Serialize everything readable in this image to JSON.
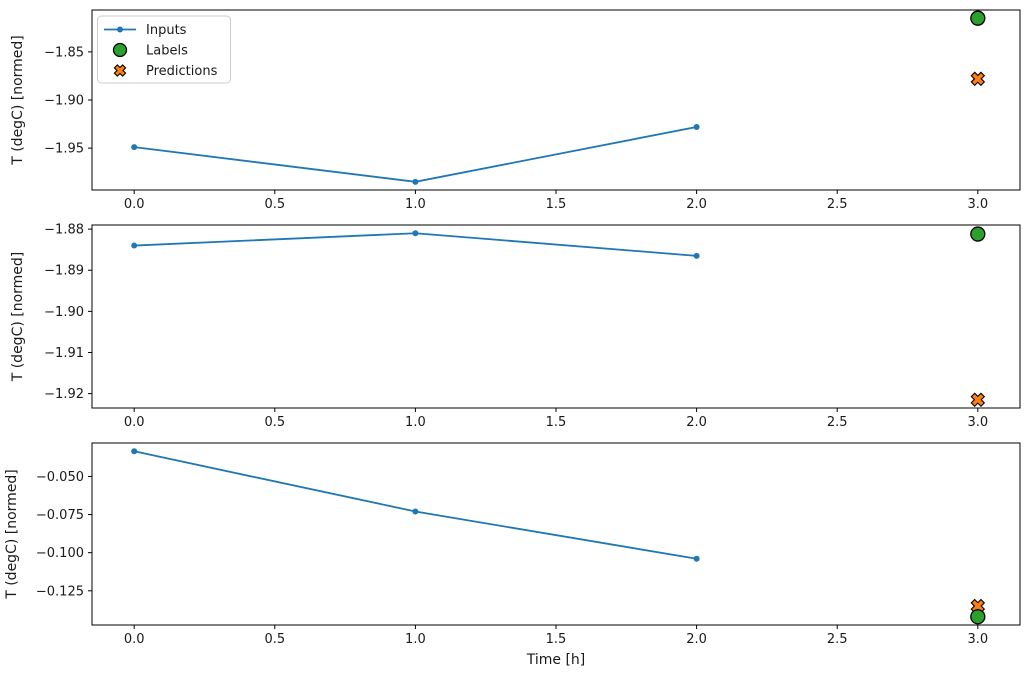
{
  "chart_data": {
    "type": "line",
    "title": "",
    "xlabel": "Time [h]",
    "ylabel": "T (degC) [normed]",
    "grid": false,
    "legend": {
      "position": "upper left",
      "items": [
        {
          "label": "Inputs",
          "marker": "line-dot",
          "color": "#1f77b4",
          "edge": "#1f77b4"
        },
        {
          "label": "Labels",
          "marker": "circle",
          "color": "#2ca02c",
          "edge": "#000000"
        },
        {
          "label": "Predictions",
          "marker": "x",
          "color": "#ff7f0e",
          "edge": "#000000"
        }
      ]
    },
    "colors": {
      "inputs": "#1f77b4",
      "labels": "#2ca02c",
      "predictions": "#ff7f0e"
    },
    "xlim": [
      -0.15,
      3.15
    ],
    "xticks": [
      0.0,
      0.5,
      1.0,
      1.5,
      2.0,
      2.5,
      3.0
    ],
    "xtick_decimals": 1,
    "subplots": [
      {
        "name": "example-1",
        "series": [
          {
            "name": "Inputs",
            "x": [
              0,
              1,
              2
            ],
            "y": [
              -1.949,
              -1.985,
              -1.928
            ]
          },
          {
            "name": "Labels",
            "x": [
              3
            ],
            "y": [
              -1.815
            ]
          },
          {
            "name": "Predictions",
            "x": [
              3
            ],
            "y": [
              -1.878
            ]
          }
        ],
        "yticks": [
          -1.85,
          -1.9,
          -1.95
        ],
        "ytick_decimals": 2,
        "ylim": [
          -1.9935,
          -1.8065
        ]
      },
      {
        "name": "example-2",
        "series": [
          {
            "name": "Inputs",
            "x": [
              0,
              1,
              2
            ],
            "y": [
              -1.884,
              -1.881,
              -1.8865
            ]
          },
          {
            "name": "Labels",
            "x": [
              3
            ],
            "y": [
              -1.8812
            ]
          },
          {
            "name": "Predictions",
            "x": [
              3
            ],
            "y": [
              -1.9215
            ]
          }
        ],
        "yticks": [
          -1.88,
          -1.89,
          -1.9,
          -1.91,
          -1.92
        ],
        "ytick_decimals": 2,
        "ylim": [
          -1.9235,
          -1.879
        ]
      },
      {
        "name": "example-3",
        "series": [
          {
            "name": "Inputs",
            "x": [
              0,
              1,
              2
            ],
            "y": [
              -0.0335,
              -0.073,
              -0.104
            ]
          },
          {
            "name": "Labels",
            "x": [
              3
            ],
            "y": [
              -0.142
            ]
          },
          {
            "name": "Predictions",
            "x": [
              3
            ],
            "y": [
              -0.135
            ]
          }
        ],
        "yticks": [
          -0.05,
          -0.075,
          -0.1,
          -0.125
        ],
        "ytick_decimals": 3,
        "ylim": [
          -0.14743,
          -0.02808
        ]
      }
    ]
  }
}
